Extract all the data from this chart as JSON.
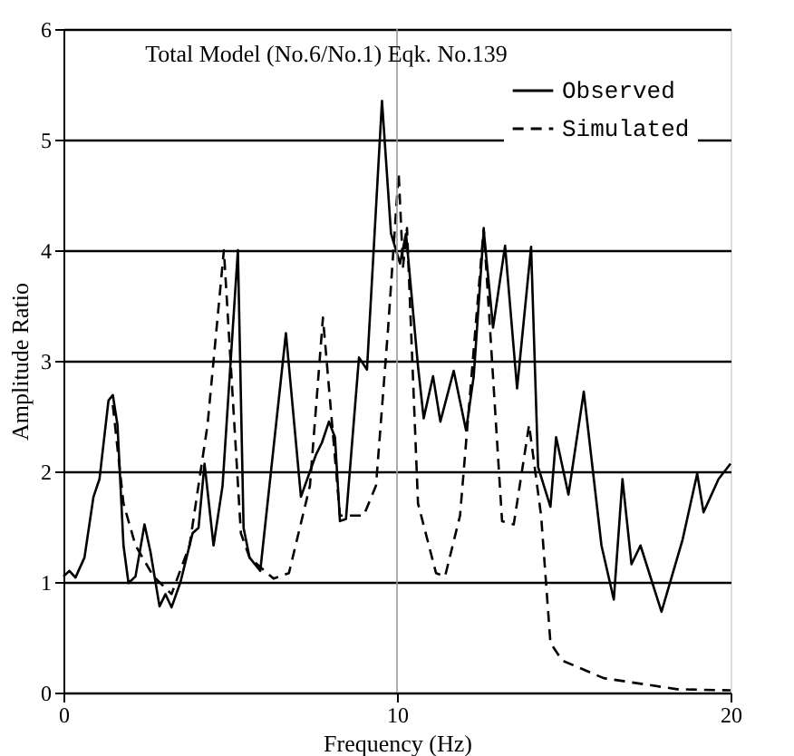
{
  "chart_data": {
    "type": "line",
    "title": "Total Model (No.6/No.1) Eqk. No.139",
    "xlabel": "Frequency (Hz)",
    "ylabel": "Amplitude Ratio",
    "xlim": [
      0,
      20
    ],
    "xticks": [
      0,
      10,
      20
    ],
    "ylim": [
      0,
      6
    ],
    "yticks": [
      0,
      1,
      2,
      3,
      4,
      5,
      6
    ],
    "grid": "y",
    "legend": "top right",
    "marker": "none",
    "ref_lines": [
      {
        "axis": "x",
        "value": 10,
        "label": null,
        "color": "#999999"
      }
    ],
    "series": [
      {
        "name": "Observed",
        "color": "#000000",
        "line_style": "solid",
        "x": [
          0,
          0.18,
          0.36,
          0.63,
          0.9,
          1.08,
          1.35,
          1.48,
          1.62,
          1.8,
          1.95,
          2.16,
          2.43,
          2.61,
          2.88,
          3.06,
          3.24,
          3.51,
          3.87,
          4.05,
          4.23,
          4.5,
          4.77,
          5.23,
          5.4,
          5.58,
          5.9,
          6.67,
          7.12,
          7.57,
          7.75,
          7.96,
          8.14,
          8.29,
          8.47,
          8.86,
          9.1,
          9.55,
          9.82,
          10.09,
          10.27,
          10.63,
          10.8,
          11.08,
          11.3,
          11.7,
          12.07,
          12.3,
          12.6,
          12.88,
          13.24,
          13.6,
          14.02,
          14.23,
          14.6,
          14.77,
          15.14,
          15.6,
          16.13,
          16.5,
          16.76,
          17.03,
          17.3,
          17.93,
          18.56,
          19.0,
          19.19,
          19.64,
          20
        ],
        "values": [
          1.05,
          1.1,
          1.04,
          1.22,
          1.77,
          1.93,
          2.64,
          2.69,
          2.42,
          1.33,
          0.99,
          1.05,
          1.52,
          1.27,
          0.78,
          0.89,
          0.77,
          1.0,
          1.44,
          1.49,
          2.07,
          1.33,
          1.87,
          4.0,
          1.49,
          1.22,
          1.1,
          3.25,
          1.77,
          2.15,
          2.26,
          2.45,
          2.31,
          1.55,
          1.57,
          3.03,
          2.92,
          5.35,
          4.15,
          3.88,
          4.15,
          2.95,
          2.48,
          2.86,
          2.45,
          2.91,
          2.37,
          2.86,
          4.18,
          3.3,
          4.04,
          2.75,
          4.03,
          2.04,
          1.68,
          2.31,
          1.79,
          2.72,
          1.33,
          0.84,
          1.93,
          1.16,
          1.33,
          0.73,
          1.38,
          1.98,
          1.63,
          1.93,
          2.07
        ]
      },
      {
        "name": "Simulated",
        "color": "#000000",
        "line_style": "dashed",
        "x": [
          1.48,
          1.8,
          2.16,
          2.7,
          3.24,
          3.78,
          4.32,
          4.81,
          5.32,
          5.58,
          6.3,
          6.76,
          7.39,
          7.78,
          8.29,
          9.0,
          9.37,
          9.73,
          10.05,
          10.18,
          10.3,
          10.63,
          11.17,
          11.44,
          11.89,
          12.6,
          13.15,
          13.5,
          13.96,
          14.32,
          14.6,
          14.95,
          16.2,
          18.4,
          20
        ],
        "values": [
          2.6,
          1.71,
          1.33,
          1.05,
          0.89,
          1.33,
          2.42,
          4.0,
          1.44,
          1.22,
          1.03,
          1.08,
          1.87,
          3.39,
          1.6,
          1.6,
          1.87,
          3.28,
          4.7,
          3.85,
          4.2,
          1.71,
          1.08,
          1.05,
          1.6,
          4.2,
          1.55,
          1.52,
          2.42,
          1.6,
          0.45,
          0.29,
          0.13,
          0.03,
          0.02
        ]
      }
    ]
  }
}
